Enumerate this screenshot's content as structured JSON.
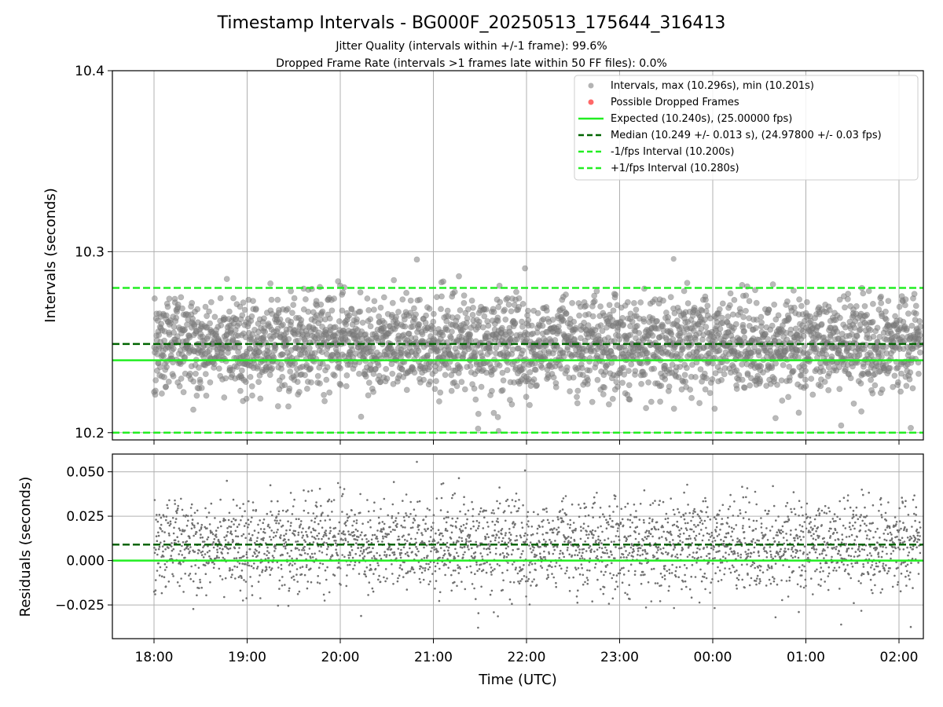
{
  "figure": {
    "title": "Timestamp Intervals - BG000F_20250513_175644_316413",
    "subtitle_1": "Jitter Quality (intervals within +/-1 frame): 99.6%",
    "subtitle_2": "Dropped Frame Rate (intervals >1 frames late within 50 FF files): 0.0%"
  },
  "chart_data": [
    {
      "type": "scatter",
      "panel": "top",
      "ylabel": "Intervals (seconds)",
      "xlabel": "",
      "ylim": [
        10.196,
        10.4
      ],
      "y_ticks": [
        "10.2",
        "10.3",
        "10.4"
      ],
      "x_tick_labels": [
        "18:00",
        "19:00",
        "20:00",
        "21:00",
        "22:00",
        "23:00",
        "00:00",
        "01:00",
        "02:00"
      ],
      "x_range_hours_utc": [
        "2025-05-13 17:33",
        "2025-05-14 02:14"
      ],
      "grid": true,
      "legend_position": "top-right",
      "series": [
        {
          "name": "Intervals, max (10.296s), min (10.201s)",
          "kind": "scatter",
          "color": "#808080",
          "center": 10.249,
          "std": 0.013,
          "max": 10.296,
          "min": 10.201,
          "count": 3000
        },
        {
          "name": "Possible Dropped Frames",
          "kind": "scatter",
          "color": "#ff4d4d",
          "values": []
        },
        {
          "name": "Expected (10.240s), (25.00000 fps)",
          "kind": "hline",
          "y": 10.24,
          "color": "#22ee22",
          "dash": "solid"
        },
        {
          "name": "Median (10.249 +/- 0.013 s), (24.97800 +/- 0.03 fps)",
          "kind": "hline",
          "y": 10.249,
          "color": "#006400",
          "dash": "dashed"
        },
        {
          "name": "-1/fps Interval (10.200s)",
          "kind": "hline",
          "y": 10.2,
          "color": "#22ee22",
          "dash": "dashed"
        },
        {
          "name": "+1/fps Interval (10.280s)",
          "kind": "hline",
          "y": 10.28,
          "color": "#22ee22",
          "dash": "dashed"
        }
      ]
    },
    {
      "type": "scatter",
      "panel": "bottom",
      "ylabel": "Residuals (seconds)",
      "xlabel": "Time (UTC)",
      "ylim": [
        -0.044,
        0.06
      ],
      "y_ticks": [
        "0.050",
        "0.025",
        "0.000",
        "−0.025"
      ],
      "x_tick_labels": [
        "18:00",
        "19:00",
        "20:00",
        "21:00",
        "22:00",
        "23:00",
        "00:00",
        "01:00",
        "02:00"
      ],
      "grid": true,
      "series": [
        {
          "kind": "scatter",
          "color": "#707070",
          "center": 0.009,
          "std": 0.013,
          "count": 3000
        },
        {
          "kind": "hline",
          "y": 0.0,
          "color": "#22ee22",
          "dash": "solid"
        },
        {
          "kind": "hline",
          "y": 0.009,
          "color": "#006400",
          "dash": "dashed"
        }
      ]
    }
  ]
}
